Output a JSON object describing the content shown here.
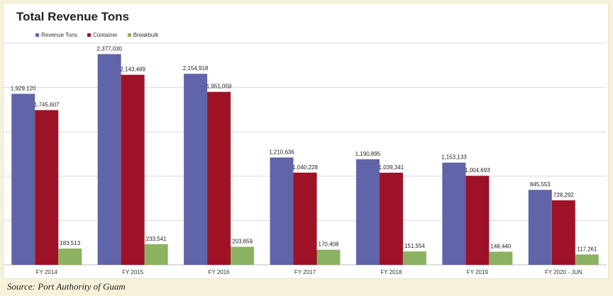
{
  "chart_data": {
    "type": "bar",
    "title": "Total Revenue Tons",
    "categories": [
      "FY 2014",
      "FY 2015",
      "FY 2016",
      "FY 2017",
      "FY 2018",
      "FY 2019",
      "FY 2020 - JUN"
    ],
    "series": [
      {
        "name": "Revenue Tons",
        "color": "#6064a8",
        "values": [
          1929120,
          2377030,
          2154918,
          1210636,
          1190895,
          1153133,
          845553
        ],
        "labels": [
          "1,929,120",
          "2,377,030",
          "2,154,918",
          "1,210,636",
          "1,190,895",
          "1,153,133",
          "845,553"
        ]
      },
      {
        "name": "Container",
        "color": "#9e1228",
        "values": [
          1745607,
          2143489,
          1951059,
          1040228,
          1039341,
          1004693,
          728292
        ],
        "labels": [
          "1,745,607",
          "2,143,489",
          "1,951,059",
          "1,040,228",
          "1,039,341",
          "1,004,693",
          "728,292"
        ]
      },
      {
        "name": "Breakbulk",
        "color": "#8cb261",
        "values": [
          183513,
          233541,
          203859,
          170408,
          151554,
          148440,
          117261
        ],
        "labels": [
          "183,513",
          "233,541",
          "203,859",
          "170,408",
          "151,554",
          "148,440",
          "117,261"
        ]
      }
    ],
    "ylim": [
      0,
      2500000
    ],
    "grid": true,
    "legend": "top-left"
  },
  "source": "Source: Port Authority of Guam"
}
